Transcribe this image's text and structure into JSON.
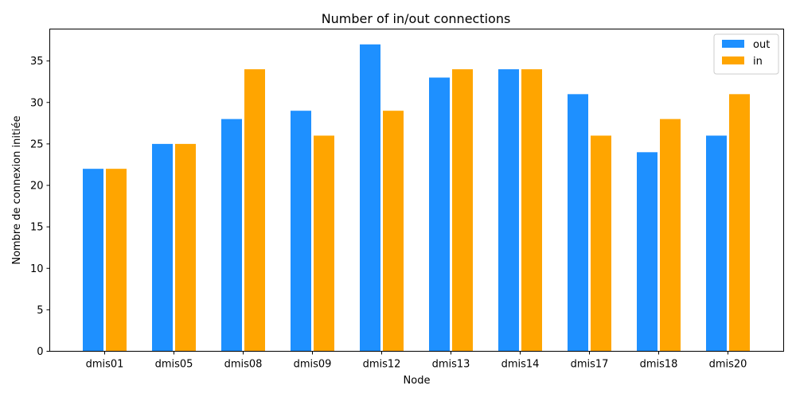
{
  "chart_data": {
    "type": "bar",
    "title": "Number of in/out connections",
    "xlabel": "Node",
    "ylabel": "Nombre de connexion initiée",
    "categories": [
      "dmis01",
      "dmis05",
      "dmis08",
      "dmis09",
      "dmis12",
      "dmis13",
      "dmis14",
      "dmis17",
      "dmis18",
      "dmis20"
    ],
    "series": [
      {
        "name": "out",
        "color": "#1E90FF",
        "values": [
          22,
          25,
          28,
          29,
          37,
          33,
          34,
          31,
          24,
          26
        ]
      },
      {
        "name": "in",
        "color": "#FFA500",
        "values": [
          22,
          25,
          34,
          26,
          29,
          34,
          34,
          26,
          28,
          31
        ]
      }
    ],
    "ylim": [
      0,
      38.85
    ],
    "yticks": [
      0,
      5,
      10,
      15,
      20,
      25,
      30,
      35
    ],
    "grid": false,
    "legend_position": "top-right"
  }
}
